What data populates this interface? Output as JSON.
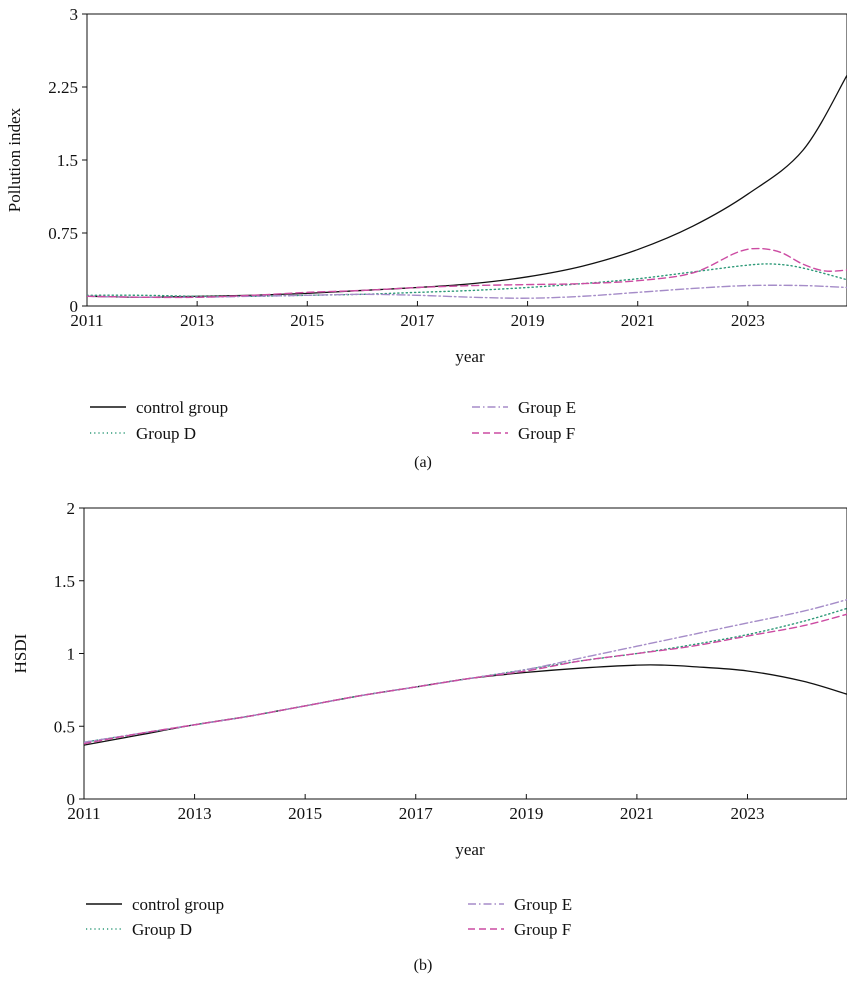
{
  "colors": {
    "control": "#111111",
    "groupD": "#2e9a78",
    "groupE": "#a58cc8",
    "groupF": "#cc4ba2"
  },
  "chart_data": [
    {
      "type": "line",
      "panel_label": "(a)",
      "xlabel": "year",
      "ylabel": "Pollution index",
      "xlim": [
        2011,
        2024.8
      ],
      "ylim": [
        0,
        3
      ],
      "x_ticks": [
        2011,
        2013,
        2015,
        2017,
        2019,
        2021,
        2023
      ],
      "y_ticks": [
        0,
        0.75,
        1.5,
        2.25,
        3
      ],
      "y_tick_labels": [
        "0",
        "0.75",
        "1.5",
        "2.25",
        "3"
      ],
      "legend": [
        "control group",
        "Group D",
        "Group E",
        "Group F"
      ],
      "legend_placement": "below",
      "series": [
        {
          "name": "control group",
          "style": "solid",
          "color_key": "control",
          "x": [
            2011,
            2012,
            2013,
            2014,
            2015,
            2016,
            2017,
            2018,
            2019,
            2020,
            2021,
            2022,
            2023,
            2024,
            2024.8
          ],
          "values": [
            0.1,
            0.09,
            0.1,
            0.11,
            0.13,
            0.16,
            0.19,
            0.23,
            0.3,
            0.41,
            0.58,
            0.82,
            1.15,
            1.6,
            2.37
          ]
        },
        {
          "name": "Group D",
          "style": "dotted",
          "color_key": "groupD",
          "x": [
            2011,
            2012,
            2013,
            2014,
            2015,
            2016,
            2017,
            2018,
            2019,
            2020,
            2021,
            2022,
            2023,
            2023.5,
            2024,
            2024.8
          ],
          "values": [
            0.11,
            0.11,
            0.1,
            0.1,
            0.11,
            0.12,
            0.14,
            0.16,
            0.19,
            0.23,
            0.28,
            0.35,
            0.42,
            0.43,
            0.39,
            0.27
          ]
        },
        {
          "name": "Group E",
          "style": "dashdot",
          "color_key": "groupE",
          "x": [
            2011,
            2012,
            2013,
            2014,
            2015,
            2016,
            2017,
            2018,
            2019,
            2020,
            2021,
            2022,
            2023,
            2024,
            2024.8
          ],
          "values": [
            0.1,
            0.09,
            0.09,
            0.1,
            0.11,
            0.12,
            0.11,
            0.09,
            0.08,
            0.1,
            0.14,
            0.18,
            0.21,
            0.21,
            0.19
          ]
        },
        {
          "name": "Group F",
          "style": "dashed",
          "color_key": "groupF",
          "x": [
            2011,
            2012,
            2013,
            2014,
            2015,
            2016,
            2017,
            2018,
            2019,
            2020,
            2021,
            2022,
            2022.8,
            2023.2,
            2023.6,
            2024,
            2024.4,
            2024.8
          ],
          "values": [
            0.1,
            0.09,
            0.09,
            0.11,
            0.14,
            0.16,
            0.19,
            0.21,
            0.22,
            0.23,
            0.26,
            0.34,
            0.55,
            0.59,
            0.55,
            0.43,
            0.36,
            0.37
          ]
        }
      ]
    },
    {
      "type": "line",
      "panel_label": "(b)",
      "xlabel": "year",
      "ylabel": "HSDI",
      "xlim": [
        2011,
        2024.8
      ],
      "ylim": [
        0,
        2
      ],
      "x_ticks": [
        2011,
        2013,
        2015,
        2017,
        2019,
        2021,
        2023
      ],
      "y_ticks": [
        0,
        0.5,
        1,
        1.5,
        2
      ],
      "y_tick_labels": [
        "0",
        "0.5",
        "1",
        "1.5",
        "2"
      ],
      "legend": [
        "control group",
        "Group D",
        "Group E",
        "Group F"
      ],
      "legend_placement": "below",
      "series": [
        {
          "name": "control group",
          "style": "solid",
          "color_key": "control",
          "x": [
            2011,
            2012,
            2013,
            2014,
            2015,
            2016,
            2017,
            2018,
            2019,
            2020,
            2021,
            2021.5,
            2022,
            2023,
            2024,
            2024.8
          ],
          "values": [
            0.37,
            0.44,
            0.51,
            0.57,
            0.64,
            0.71,
            0.77,
            0.83,
            0.87,
            0.9,
            0.92,
            0.92,
            0.91,
            0.88,
            0.81,
            0.72
          ]
        },
        {
          "name": "Group D",
          "style": "dotted",
          "color_key": "groupD",
          "x": [
            2011,
            2012,
            2013,
            2014,
            2015,
            2016,
            2017,
            2018,
            2019,
            2020,
            2021,
            2022,
            2023,
            2024,
            2024.8
          ],
          "values": [
            0.39,
            0.45,
            0.51,
            0.57,
            0.64,
            0.71,
            0.77,
            0.83,
            0.89,
            0.95,
            1.0,
            1.06,
            1.13,
            1.22,
            1.31
          ]
        },
        {
          "name": "Group E",
          "style": "dashdot",
          "color_key": "groupE",
          "x": [
            2011,
            2012,
            2013,
            2014,
            2015,
            2016,
            2017,
            2018,
            2019,
            2020,
            2021,
            2022,
            2023,
            2024,
            2024.8
          ],
          "values": [
            0.39,
            0.45,
            0.51,
            0.57,
            0.64,
            0.71,
            0.77,
            0.83,
            0.89,
            0.97,
            1.05,
            1.13,
            1.21,
            1.29,
            1.37
          ]
        },
        {
          "name": "Group F",
          "style": "dashed",
          "color_key": "groupF",
          "x": [
            2011,
            2012,
            2013,
            2014,
            2015,
            2016,
            2017,
            2018,
            2019,
            2020,
            2021,
            2022,
            2023,
            2024,
            2024.8
          ],
          "values": [
            0.38,
            0.45,
            0.51,
            0.57,
            0.64,
            0.71,
            0.77,
            0.83,
            0.88,
            0.95,
            1.0,
            1.05,
            1.12,
            1.19,
            1.27
          ]
        }
      ]
    }
  ]
}
